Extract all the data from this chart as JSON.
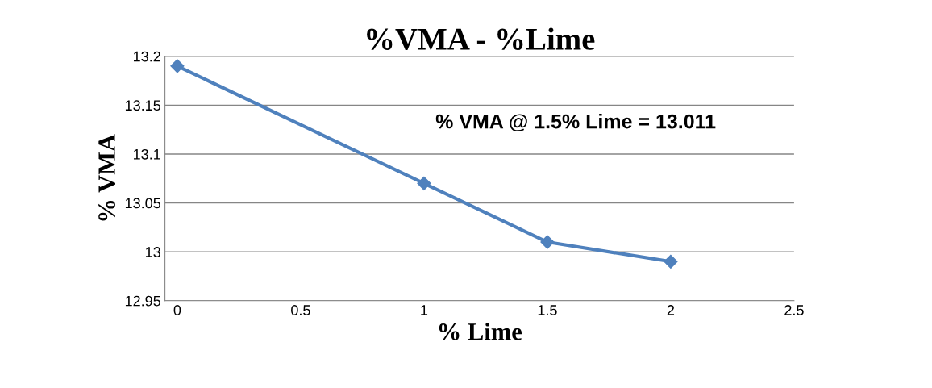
{
  "chart_data": {
    "type": "line",
    "title": "%VMA - %Lime",
    "xlabel": "% Lime",
    "ylabel": "% VMA",
    "x": [
      0,
      1,
      1.5,
      2
    ],
    "series": [
      {
        "color": "#4f81bd",
        "values": [
          13.19,
          13.07,
          13.01,
          12.99
        ]
      }
    ],
    "xlim": [
      -0.05,
      2.5
    ],
    "xticks": [
      0,
      0.5,
      1,
      1.5,
      2,
      2.5
    ],
    "ylim": [
      12.95,
      13.2
    ],
    "yticks": [
      12.95,
      13,
      13.05,
      13.1,
      13.15,
      13.2
    ],
    "grid": "y",
    "marker": "diamond",
    "line_style": "solid",
    "annotations": [
      "% VMA @ 1.5% Lime = 13.011"
    ]
  }
}
